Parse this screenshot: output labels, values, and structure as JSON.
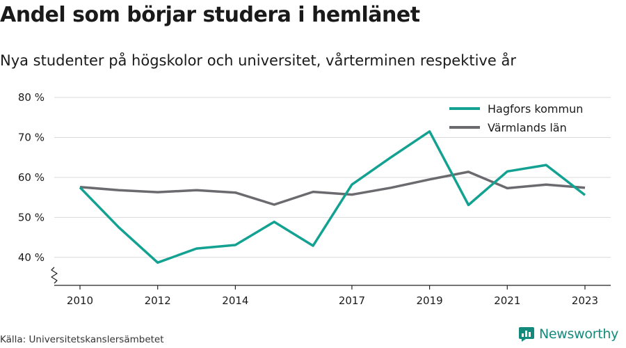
{
  "header": {
    "title": "Andel som börjar studera i hemlänet",
    "subtitle": "Nya studenter på högskolor och universitet, vårterminen respektive år"
  },
  "footer": {
    "source": "Källa: Universitetskanslersämbetet",
    "brand": "Newsworthy",
    "brand_icon": "newsworthy-logo-icon"
  },
  "colors": {
    "hagfors": "#13a192",
    "varmland": "#6b6a6f",
    "grid": "#d9d9d9",
    "axis": "#222222",
    "brand": "#138a7c"
  },
  "chart_data": {
    "type": "line",
    "x": [
      2010,
      2011,
      2012,
      2013,
      2014,
      2015,
      2016,
      2017,
      2018,
      2019,
      2020,
      2021,
      2022,
      2023
    ],
    "x_tick_labels": [
      "2010",
      "2012",
      "2014",
      "2017",
      "2019",
      "2021",
      "2023"
    ],
    "y_ticks": [
      40,
      50,
      60,
      70,
      80
    ],
    "y_tick_labels": [
      "40 %",
      "50 %",
      "60 %",
      "70 %",
      "80 %"
    ],
    "ylim": [
      33,
      80
    ],
    "y_axis_break": true,
    "grid": true,
    "legend_position": "top-right",
    "series": [
      {
        "name": "Hagfors kommun",
        "color": "#13a192",
        "values": [
          57.5,
          47.5,
          38.7,
          42.2,
          43.1,
          48.9,
          42.9,
          58.2,
          65.0,
          71.5,
          53.1,
          61.5,
          63.1,
          55.6
        ]
      },
      {
        "name": "Värmlands län",
        "color": "#6b6a6f",
        "values": [
          57.6,
          56.8,
          56.3,
          56.8,
          56.2,
          53.2,
          56.4,
          55.7,
          57.4,
          59.5,
          61.4,
          57.3,
          58.2,
          57.4
        ]
      }
    ]
  }
}
